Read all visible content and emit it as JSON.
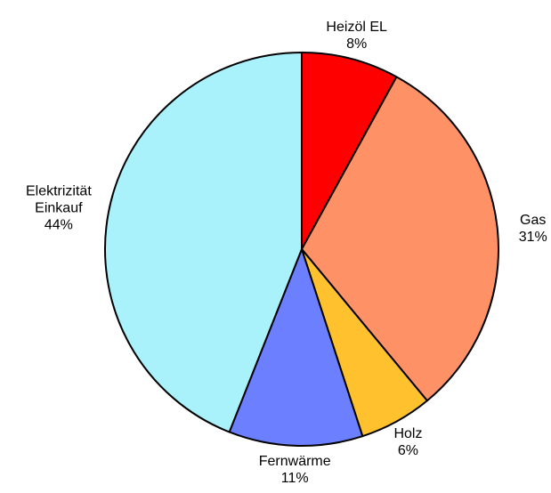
{
  "chart_data": {
    "type": "pie",
    "categories": [
      "Heizöl EL",
      "Gas",
      "Holz",
      "Fernwärme",
      "Elektrizität\nEinkauf"
    ],
    "values": [
      8,
      31,
      6,
      11,
      44
    ],
    "value_labels": [
      "8%",
      "31%",
      "6%",
      "11%",
      "44%"
    ],
    "colors": [
      "#ff0000",
      "#ff9166",
      "#ffc22e",
      "#6b7fff",
      "#a9f2fc"
    ]
  }
}
